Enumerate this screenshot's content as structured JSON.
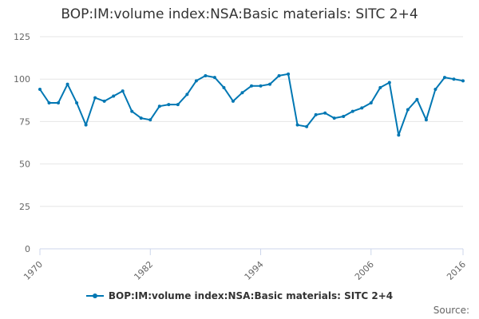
{
  "chart_data": {
    "type": "line",
    "title": "BOP:IM:volume index:NSA:Basic materials: SITC 2+4",
    "xlabel": "",
    "ylabel": "",
    "ylim": [
      0,
      125
    ],
    "yticks": [
      0,
      25,
      50,
      75,
      100,
      125
    ],
    "xlim": [
      1970,
      2016
    ],
    "xticks": [
      "1970",
      "1982",
      "1994",
      "2006",
      "2016"
    ],
    "grid": true,
    "legend_position": "bottom",
    "series": [
      {
        "name": "BOP:IM:volume index:NSA:Basic materials: SITC 2+4",
        "color": "#1f77b4",
        "x": [
          1970,
          1971,
          1972,
          1973,
          1974,
          1975,
          1976,
          1977,
          1978,
          1979,
          1980,
          1981,
          1982,
          1983,
          1984,
          1985,
          1986,
          1987,
          1988,
          1989,
          1990,
          1991,
          1992,
          1993,
          1994,
          1995,
          1996,
          1997,
          1998,
          1999,
          2000,
          2001,
          2002,
          2003,
          2004,
          2005,
          2006,
          2007,
          2008,
          2009,
          2010,
          2011,
          2012,
          2013,
          2014,
          2015,
          2016
        ],
        "values": [
          94,
          86,
          86,
          97,
          86,
          73,
          89,
          87,
          90,
          93,
          81,
          77,
          76,
          84,
          85,
          85,
          91,
          99,
          102,
          101,
          95,
          87,
          92,
          96,
          96,
          97,
          102,
          103,
          73,
          72,
          79,
          80,
          77,
          78,
          81,
          83,
          86,
          95,
          98,
          67,
          82,
          88,
          76,
          94,
          101,
          100,
          99
        ]
      }
    ]
  },
  "legend": {
    "label": "BOP:IM:volume index:NSA:Basic materials: SITC 2+4"
  },
  "footer": {
    "source_label": "Source:"
  },
  "colors": {
    "line": "#0077b3",
    "grid": "#e6e6e6",
    "axis": "#ccd6eb",
    "tick_text": "#666666"
  }
}
